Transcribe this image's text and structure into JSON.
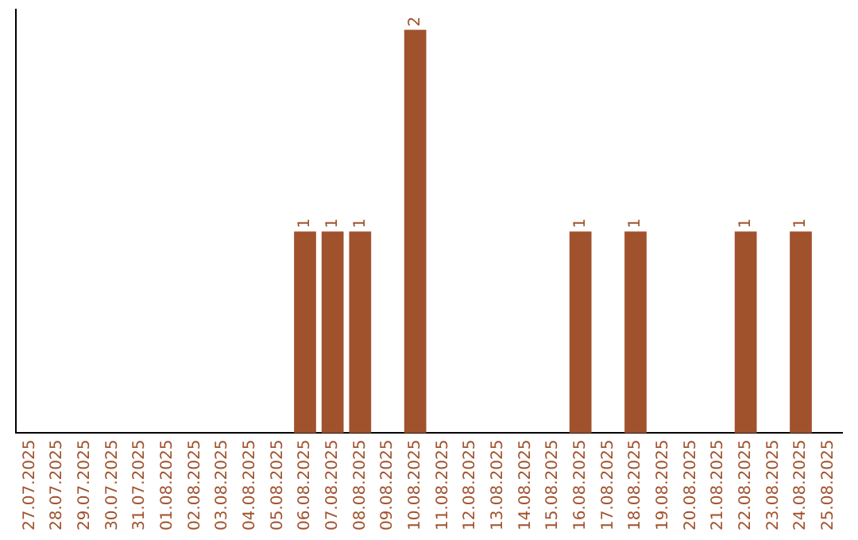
{
  "chart_data": {
    "type": "bar",
    "categories": [
      "27.07.2025",
      "28.07.2025",
      "29.07.2025",
      "30.07.2025",
      "31.07.2025",
      "01.08.2025",
      "02.08.2025",
      "03.08.2025",
      "04.08.2025",
      "05.08.2025",
      "06.08.2025",
      "07.08.2025",
      "08.08.2025",
      "09.08.2025",
      "10.08.2025",
      "11.08.2025",
      "12.08.2025",
      "13.08.2025",
      "14.08.2025",
      "15.08.2025",
      "16.08.2025",
      "17.08.2025",
      "18.08.2025",
      "19.08.2025",
      "20.08.2025",
      "21.08.2025",
      "22.08.2025",
      "23.08.2025",
      "24.08.2025",
      "25.08.2025"
    ],
    "values": [
      0,
      0,
      0,
      0,
      0,
      0,
      0,
      0,
      0,
      0,
      1,
      1,
      1,
      0,
      2,
      0,
      0,
      0,
      0,
      0,
      1,
      0,
      1,
      0,
      0,
      0,
      1,
      0,
      1,
      0
    ],
    "value_labels": [
      null,
      null,
      null,
      null,
      null,
      null,
      null,
      null,
      null,
      null,
      "1",
      "1",
      "1",
      null,
      "2",
      null,
      null,
      null,
      null,
      null,
      "1",
      null,
      "1",
      null,
      null,
      null,
      "1",
      null,
      "1",
      null
    ],
    "color": "#a0522d",
    "ylim": [
      0,
      2.1
    ],
    "tick_labels": "x",
    "grid": false,
    "legend": false
  }
}
